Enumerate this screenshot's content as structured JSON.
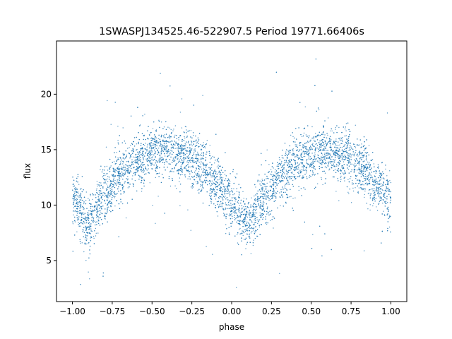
{
  "chart_data": {
    "type": "scatter",
    "title": "1SWASPJ134525.46-522907.5 Period 19771.66406s",
    "xlabel": "phase",
    "ylabel": "flux",
    "xlim": [
      -1.1,
      1.1
    ],
    "ylim": [
      1.3,
      24.8
    ],
    "xticks": [
      -1.0,
      -0.75,
      -0.5,
      -0.25,
      0.0,
      0.25,
      0.5,
      0.75,
      1.0
    ],
    "xtick_labels": [
      "−1.00",
      "−0.75",
      "−0.50",
      "−0.25",
      "0.00",
      "0.25",
      "0.50",
      "0.75",
      "1.00"
    ],
    "yticks": [
      5,
      10,
      15,
      20
    ],
    "ytick_labels": [
      "5",
      "10",
      "15",
      "20"
    ],
    "grid": false,
    "marker_color": "#1f77b4",
    "series": [
      {
        "x": [
          -1.0,
          -0.9,
          -0.8,
          -0.7,
          -0.6,
          -0.5,
          -0.4,
          -0.3,
          -0.2,
          -0.1,
          0.0,
          0.1,
          0.2,
          0.3,
          0.4,
          0.5,
          0.6,
          0.7,
          0.8,
          0.9,
          1.0
        ],
        "y": [
          10.5,
          8.3,
          10.8,
          12.8,
          14.0,
          14.6,
          14.8,
          14.4,
          13.5,
          12.0,
          10.3,
          8.2,
          10.5,
          12.6,
          13.8,
          14.5,
          14.8,
          14.5,
          13.6,
          12.0,
          10.5
        ],
        "spread": 1.2
      }
    ]
  }
}
